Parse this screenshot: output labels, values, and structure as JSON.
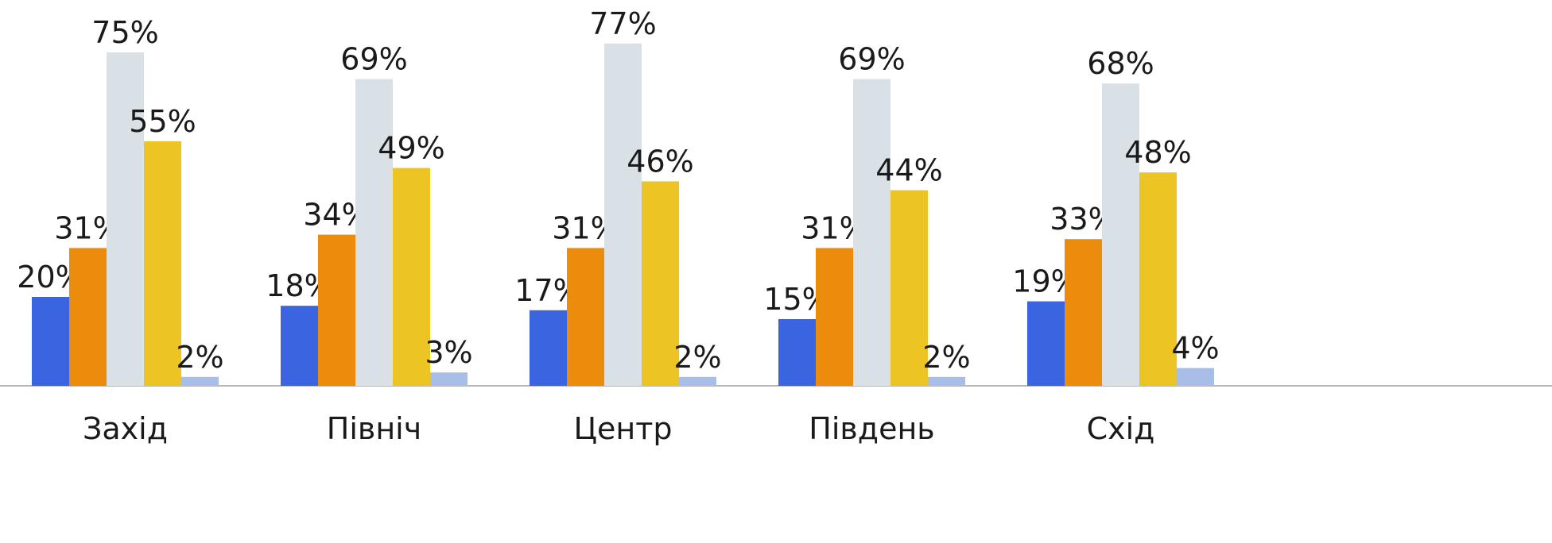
{
  "chart_data": {
    "type": "bar",
    "categories": [
      "Захід",
      "Північ",
      "Центр",
      "Південь",
      "Схід"
    ],
    "series": [
      {
        "color": "#3a64e0",
        "values": [
          20,
          18,
          17,
          15,
          19
        ]
      },
      {
        "color": "#ec8c0c",
        "values": [
          31,
          34,
          31,
          31,
          33
        ]
      },
      {
        "color": "#d9e0e6",
        "values": [
          75,
          69,
          77,
          69,
          68
        ]
      },
      {
        "color": "#ecc423",
        "values": [
          55,
          49,
          46,
          44,
          48
        ]
      },
      {
        "color": "#a9bde9",
        "values": [
          2,
          3,
          2,
          2,
          4
        ]
      }
    ],
    "value_labels": [
      [
        "20%",
        "18%",
        "17%",
        "15%",
        "19%"
      ],
      [
        "31%",
        "34%",
        "31%",
        "31%",
        "33%"
      ],
      [
        "75%",
        "69%",
        "77%",
        "69%",
        "68%"
      ],
      [
        "55%",
        "49%",
        "46%",
        "44%",
        "48%"
      ],
      [
        "2%",
        "3%",
        "2%",
        "2%",
        "4%"
      ]
    ],
    "ylim": [
      0,
      80
    ],
    "grid": false,
    "legend": "none",
    "baseline_color": "#b8b8b8"
  }
}
